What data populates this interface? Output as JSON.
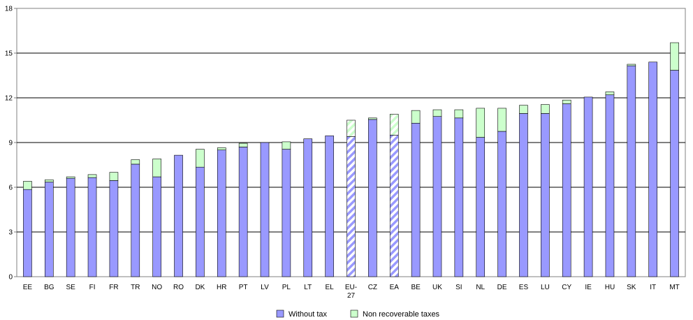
{
  "chart_data": {
    "type": "bar",
    "stacked": true,
    "title": "",
    "xlabel": "",
    "ylabel": "",
    "ylim": [
      0,
      18
    ],
    "yticks": [
      0,
      3,
      6,
      9,
      12,
      15,
      18
    ],
    "grid": true,
    "legend_position": "bottom-center",
    "categories": [
      "EE",
      "BG",
      "SE",
      "FI",
      "FR",
      "TR",
      "NO",
      "RO",
      "DK",
      "HR",
      "PT",
      "LV",
      "PL",
      "LT",
      "EL",
      "EU-27",
      "CZ",
      "EA",
      "BE",
      "UK",
      "SI",
      "NL",
      "DE",
      "ES",
      "LU",
      "CY",
      "IE",
      "HU",
      "SK",
      "IT",
      "MT"
    ],
    "category_lines": {
      "EU-27": [
        "EU-",
        "27"
      ]
    },
    "highlighted": [
      "EU-27",
      "EA"
    ],
    "series": [
      {
        "name": "Without tax",
        "color": "#9999ff",
        "values": [
          5.85,
          6.35,
          6.6,
          6.65,
          6.45,
          7.55,
          6.7,
          8.15,
          7.35,
          8.5,
          8.7,
          9.0,
          8.55,
          9.25,
          9.45,
          9.4,
          10.55,
          9.5,
          10.3,
          10.75,
          10.65,
          9.35,
          9.75,
          10.95,
          10.95,
          11.6,
          12.05,
          12.2,
          14.15,
          14.4,
          13.85
        ]
      },
      {
        "name": "Non recoverable taxes",
        "color": "#ccffcc",
        "values": [
          0.55,
          0.15,
          0.1,
          0.2,
          0.55,
          0.3,
          1.2,
          0.0,
          1.2,
          0.15,
          0.25,
          0.0,
          0.5,
          0.0,
          0.0,
          1.1,
          0.1,
          1.4,
          0.85,
          0.45,
          0.55,
          1.95,
          1.55,
          0.55,
          0.6,
          0.25,
          0.0,
          0.2,
          0.1,
          0.0,
          1.85
        ]
      }
    ]
  }
}
